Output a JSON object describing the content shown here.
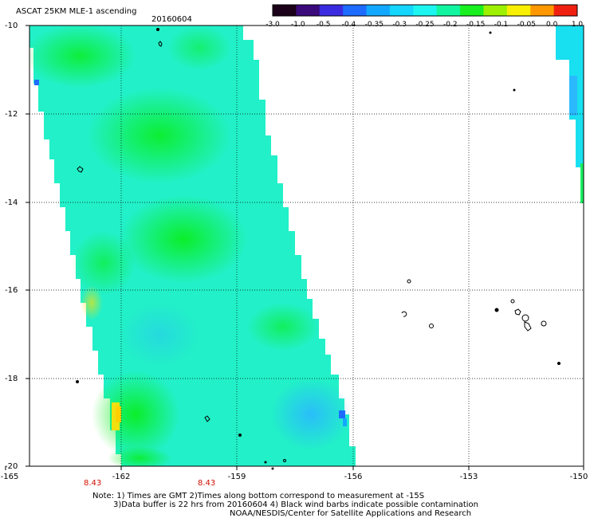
{
  "header": {
    "title": "ASCAT 25KM MLE-1 ascending",
    "date": "20160604"
  },
  "colorbar": {
    "labels": [
      "-3.0",
      "-1.0",
      "-0.5",
      "-0.4",
      "-0.35",
      "-0.3",
      "-0.25",
      "-0.2",
      "-0.15",
      "-0.1",
      "-0.05",
      "0.0",
      "1.0"
    ],
    "colors": [
      "#1a0018",
      "#3a0a7a",
      "#3b2be0",
      "#1d6bff",
      "#13a8ff",
      "#14d6ff",
      "#1cf5f0",
      "#12f5a0",
      "#18f020",
      "#9cf000",
      "#f8f000",
      "#ff9800",
      "#f02010"
    ]
  },
  "axes": {
    "y_labels": [
      "-10",
      "-12",
      "-14",
      "-16",
      "-18",
      "-20"
    ],
    "x_labels": [
      "-165",
      "-162",
      "-159",
      "-156",
      "-153",
      "-150"
    ]
  },
  "time_labels": [
    "8.43",
    "8.43"
  ],
  "notes": {
    "line1": "Note: 1) Times are GMT 2)Times along bottom correspond to measurement at -15S",
    "line2": "3)Data buffer is 22 hrs from 20160604 4) Black wind barbs indicate possible contamination",
    "line3": "NOAA/NESDIS/Center for Satellite Applications and Research"
  }
}
